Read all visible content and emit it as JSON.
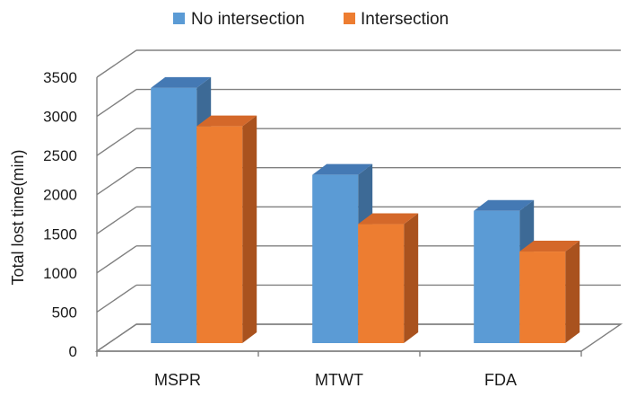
{
  "chart_data": {
    "type": "bar",
    "style": "3d-clustered-column",
    "title": "",
    "xlabel": "",
    "ylabel": "Total lost time(min)",
    "categories": [
      "MSPR",
      "MTWT",
      "FDA"
    ],
    "series": [
      {
        "name": "No intersection",
        "values": [
          3260,
          2150,
          1690
        ]
      },
      {
        "name": "Intersection",
        "values": [
          2770,
          1520,
          1170
        ]
      }
    ],
    "ylim": [
      0,
      3500
    ],
    "yticks": [
      "0",
      "500",
      "1000",
      "1500",
      "2000",
      "2500",
      "3000",
      "3500"
    ],
    "grid": true,
    "legend_position": "top-center"
  },
  "colors": {
    "series": [
      {
        "front": "#5B9BD5",
        "top": "#4479b4",
        "side": "#3d6a96"
      },
      {
        "front": "#ED7D31",
        "top": "#d4682a",
        "side": "#a9521e"
      }
    ],
    "grid": "#808080",
    "text": "#1a1a1a"
  }
}
